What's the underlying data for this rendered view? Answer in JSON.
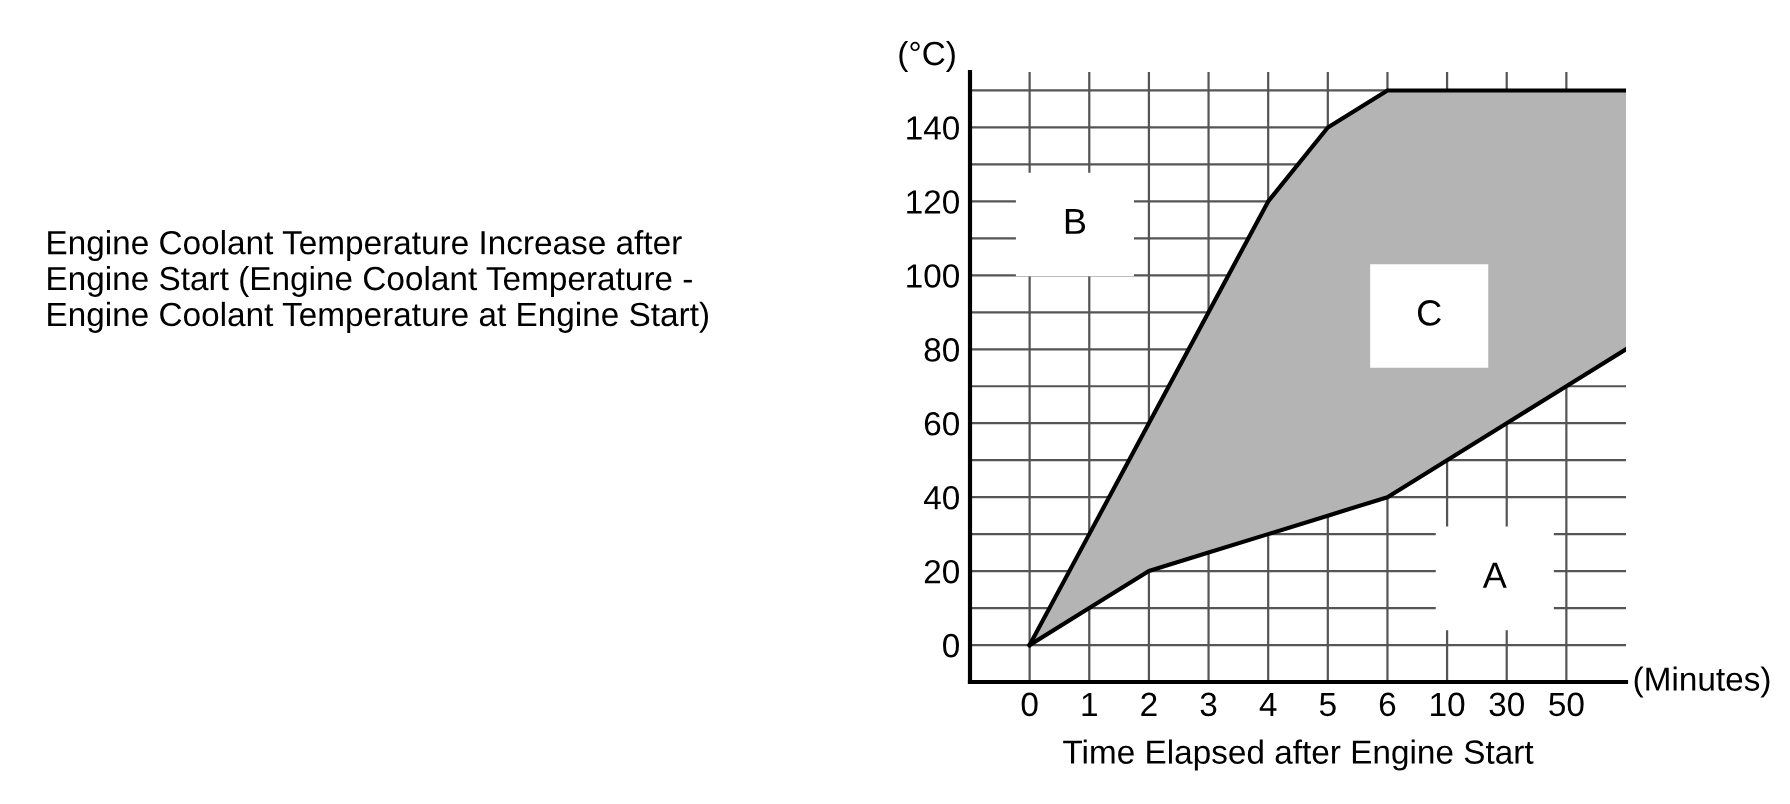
{
  "chart_data": {
    "type": "area",
    "xlabel": "Time Elapsed after Engine Start",
    "ylabel": "(°C)",
    "categories": [
      "0",
      "1",
      "2",
      "3",
      "4",
      "5",
      "6",
      "10",
      "30",
      "50",
      null
    ],
    "series": [
      {
        "type": "line",
        "color": "#000000",
        "values": [
          0,
          10,
          20,
          25,
          30,
          35,
          40,
          50,
          60,
          70,
          80
        ]
      },
      {
        "color": "#b4b4b4",
        "values": [
          0,
          30,
          60,
          90,
          120,
          140,
          150,
          150,
          150,
          150,
          150
        ]
      }
    ],
    "ylim": [
      -10,
      155
    ],
    "yticks": [
      0,
      {
        "value": 10,
        "label": null
      },
      20,
      {
        "value": 30,
        "label": null
      },
      40,
      {
        "value": 50,
        "label": null
      },
      60,
      {
        "value": 70,
        "label": null
      },
      80,
      {
        "value": 90,
        "label": null
      },
      100,
      {
        "value": 110,
        "label": null
      },
      120,
      {
        "value": 130,
        "label": null
      },
      140,
      {
        "value": 150,
        "label": null
      }
    ],
    "grid": true,
    "annotations": [
      "B",
      "C",
      "A",
      "(Minutes)",
      "Engine Coolant Temperature Increase after Engine Start (Engine Coolant Temperature - Engine Coolant Temperature at Engine Start)"
    ]
  }
}
